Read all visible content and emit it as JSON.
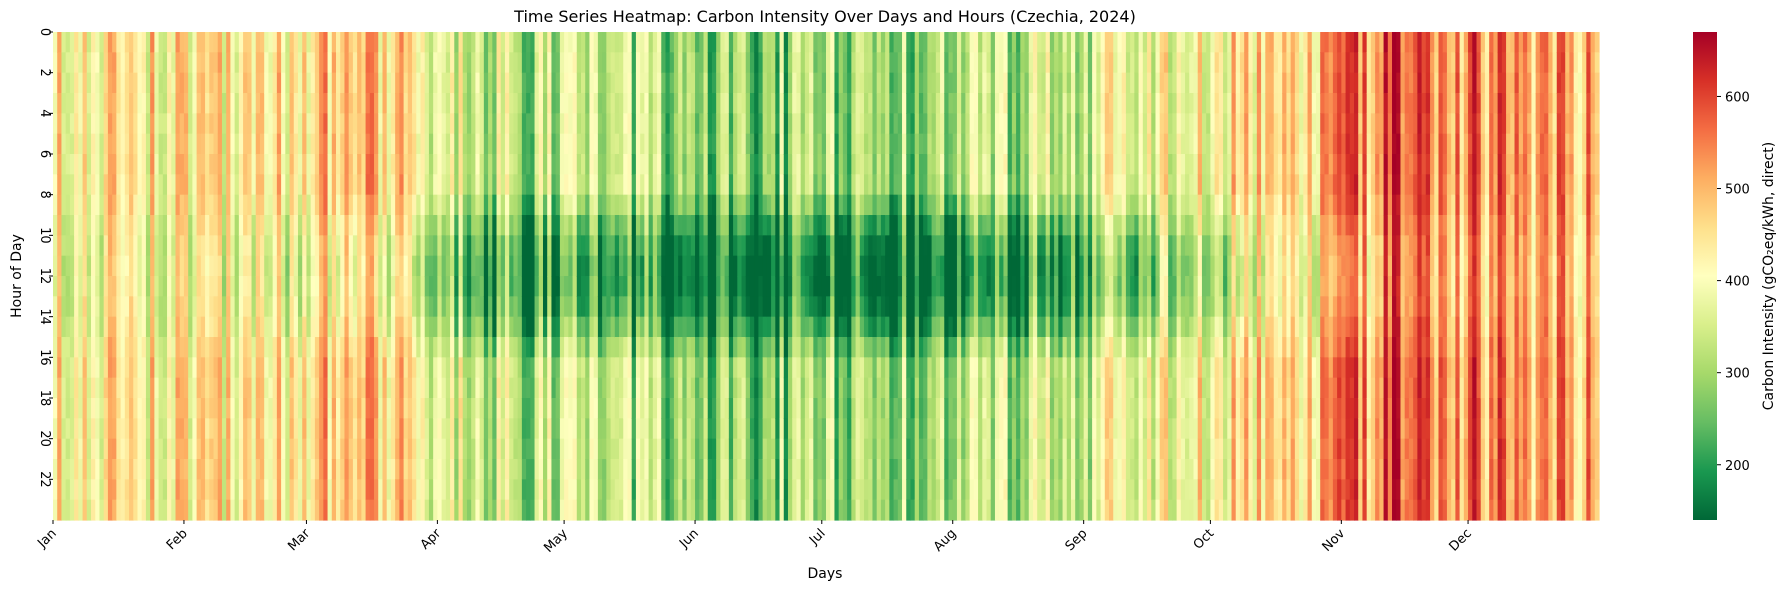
{
  "chart_data": {
    "type": "heatmap",
    "title": "Time Series Heatmap: Carbon Intensity Over Days and Hours (Czechia, 2024)",
    "xlabel": "Days",
    "ylabel": "Hour of Day",
    "x_tick_labels": [
      "Jan",
      "Feb",
      "Mar",
      "Apr",
      "May",
      "Jun",
      "Jul",
      "Aug",
      "Sep",
      "Oct",
      "Nov",
      "Dec"
    ],
    "x_tick_days": [
      0,
      31,
      60,
      91,
      121,
      152,
      182,
      213,
      244,
      274,
      305,
      335
    ],
    "y_tick_labels": [
      "0",
      "2",
      "4",
      "6",
      "8",
      "10",
      "12",
      "14",
      "16",
      "18",
      "20",
      "22"
    ],
    "hours": 24,
    "days": 366,
    "colorbar": {
      "label": "Carbon Intensity (gCO₂eq/kWh, direct)",
      "range": [
        140,
        670
      ],
      "ticks": [
        200,
        300,
        400,
        500,
        600
      ],
      "colormap": "RdYlGn_r",
      "stops": [
        "#006837",
        "#1a9850",
        "#66bd63",
        "#a6d96a",
        "#d9ef8b",
        "#ffffbf",
        "#fee08b",
        "#fdae61",
        "#f46d43",
        "#d73027",
        "#a50026"
      ]
    },
    "daily_base_by_month": [
      430,
      440,
      470,
      330,
      320,
      280,
      300,
      320,
      400,
      440,
      580,
      510
    ],
    "midday_solar_dip_by_month": [
      30,
      50,
      80,
      150,
      150,
      160,
      170,
      150,
      120,
      70,
      40,
      20
    ]
  }
}
